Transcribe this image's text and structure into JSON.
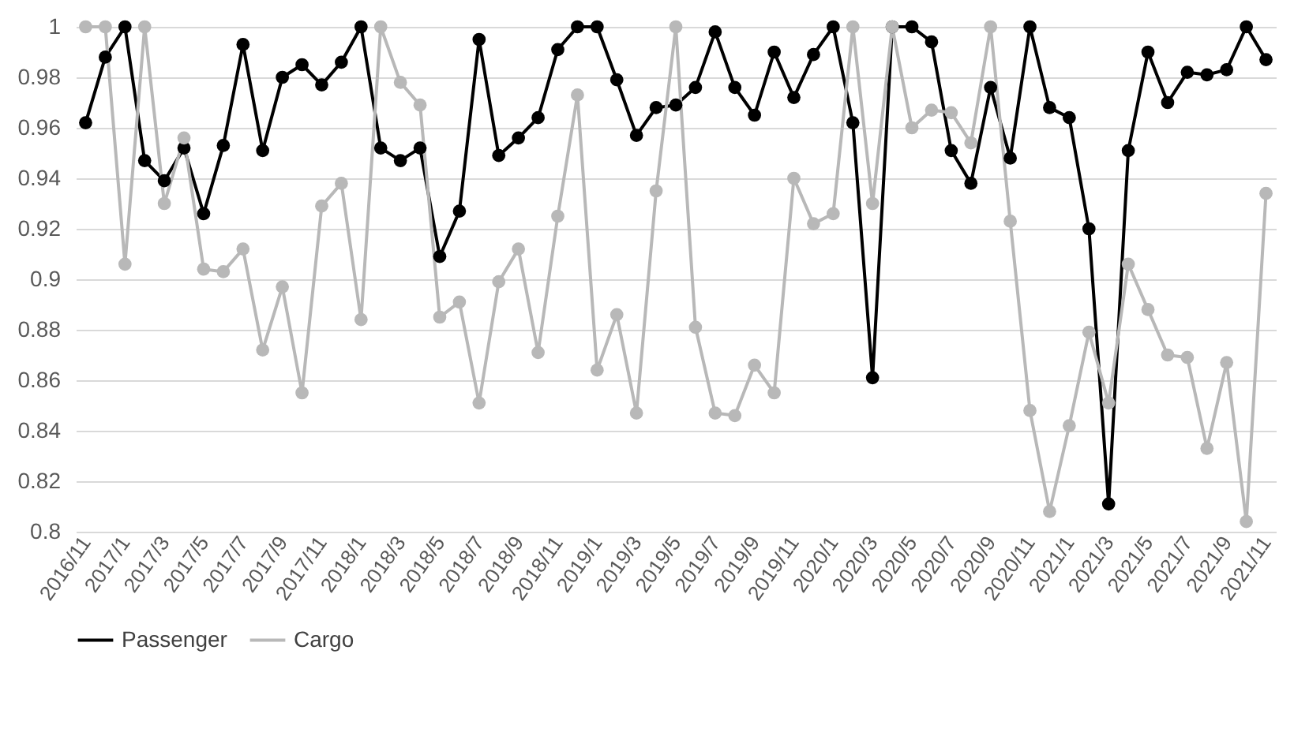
{
  "chart_data": {
    "type": "line",
    "categories": [
      "2016/11",
      null,
      "2017/1",
      null,
      "2017/3",
      null,
      "2017/5",
      null,
      "2017/7",
      null,
      "2017/9",
      null,
      "2017/11",
      null,
      "2018/1",
      null,
      "2018/3",
      null,
      "2018/5",
      null,
      "2018/7",
      null,
      "2018/9",
      null,
      "2018/11",
      null,
      "2019/1",
      null,
      "2019/3",
      null,
      "2019/5",
      null,
      "2019/7",
      null,
      "2019/9",
      null,
      "2019/11",
      null,
      "2020/1",
      null,
      "2020/3",
      null,
      "2020/5",
      null,
      "2020/7",
      null,
      "2020/9",
      null,
      "2020/11",
      null,
      "2021/1",
      null,
      "2021/3",
      null,
      "2021/5",
      null,
      "2021/7",
      null,
      "2021/9",
      null,
      "2021/11"
    ],
    "series": [
      {
        "name": "Passenger",
        "color": "#000000",
        "values": [
          0.962,
          0.988,
          1.0,
          0.947,
          0.939,
          0.952,
          0.926,
          0.953,
          0.993,
          0.951,
          0.98,
          0.985,
          0.977,
          0.986,
          1.0,
          0.952,
          0.947,
          0.952,
          0.909,
          0.927,
          0.995,
          0.949,
          0.956,
          0.964,
          0.991,
          1.0,
          1.0,
          0.979,
          0.957,
          0.968,
          0.969,
          0.976,
          0.998,
          0.976,
          0.965,
          0.99,
          0.972,
          0.989,
          1.0,
          0.962,
          0.861,
          1.0,
          1.0,
          0.994,
          0.951,
          0.938,
          0.976,
          0.948,
          1.0,
          0.968,
          0.964,
          0.92,
          0.811,
          0.951,
          0.99,
          0.97,
          0.982,
          0.981,
          0.983,
          1.0,
          0.987
        ]
      },
      {
        "name": "Cargo",
        "color": "#b8b8b8",
        "values": [
          1.0,
          1.0,
          0.906,
          1.0,
          0.93,
          0.956,
          0.904,
          0.903,
          0.912,
          0.872,
          0.897,
          0.855,
          0.929,
          0.938,
          0.884,
          1.0,
          0.978,
          0.969,
          0.885,
          0.891,
          0.851,
          0.899,
          0.912,
          0.871,
          0.925,
          0.973,
          0.864,
          0.886,
          0.847,
          0.935,
          1.0,
          0.881,
          0.847,
          0.846,
          0.866,
          0.855,
          0.94,
          0.922,
          0.926,
          1.0,
          0.93,
          1.0,
          0.96,
          0.967,
          0.966,
          0.954,
          1.0,
          0.923,
          0.848,
          0.808,
          0.842,
          0.879,
          0.851,
          0.906,
          0.888,
          0.87,
          0.869,
          0.833,
          0.867,
          0.804,
          0.934
        ]
      }
    ],
    "ylim": [
      0.8,
      1
    ],
    "yticks": [
      0.8,
      0.82,
      0.84,
      0.86,
      0.88,
      0.9,
      0.92,
      0.94,
      0.96,
      0.98,
      1
    ],
    "grid": "y",
    "legend": "bottom",
    "marker": "circle",
    "line_style": "solid"
  }
}
